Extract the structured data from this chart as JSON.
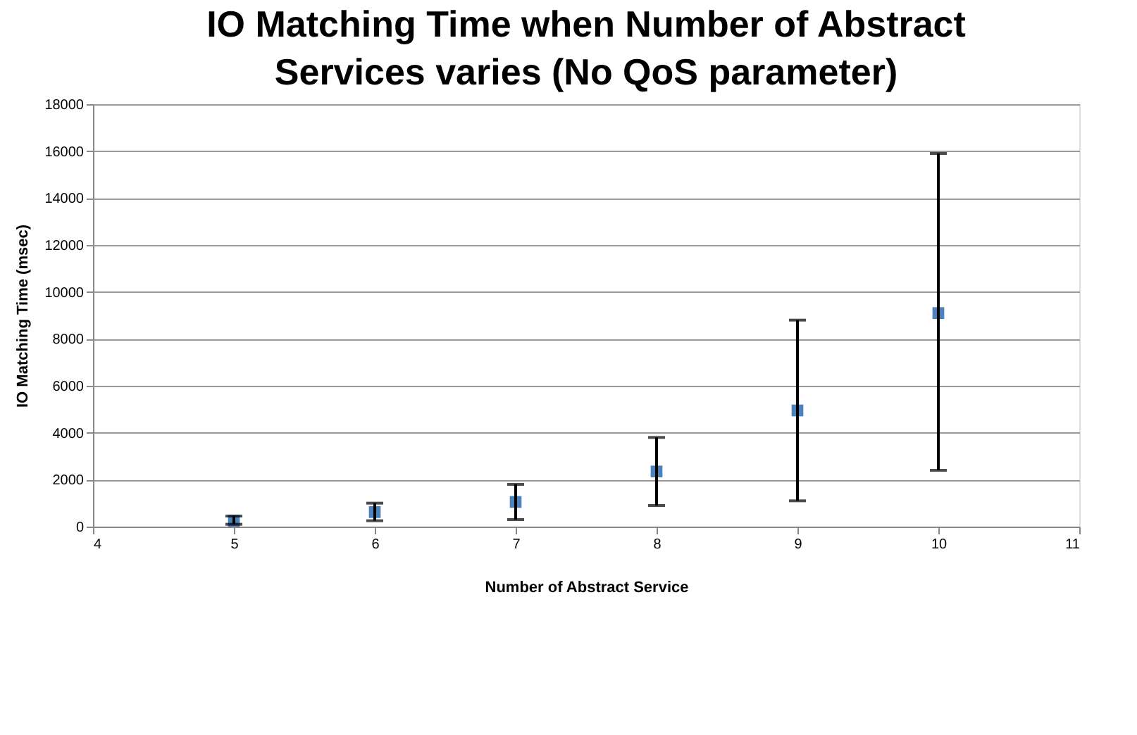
{
  "chart_data": {
    "type": "scatter",
    "title": "IO Matching Time when Number of Abstract Services varies (No QoS parameter)",
    "xlabel": "Number of Abstract Service",
    "ylabel": "IO Matching Time (msec)",
    "x": [
      5,
      6,
      7,
      8,
      9,
      10
    ],
    "values": [
      250,
      620,
      1050,
      2350,
      4950,
      9100
    ],
    "errors": [
      [
        100,
        450
      ],
      [
        250,
        1000
      ],
      [
        300,
        1800
      ],
      [
        900,
        3800
      ],
      [
        1100,
        8800
      ],
      [
        2400,
        15900
      ]
    ],
    "color": "#4f81bd",
    "xlim": [
      4,
      11
    ],
    "xticks": [
      4,
      5,
      6,
      7,
      8,
      9,
      10,
      11
    ],
    "ylim": [
      0,
      18000
    ],
    "yticks": [
      0,
      2000,
      4000,
      6000,
      8000,
      10000,
      12000,
      14000,
      16000,
      18000
    ],
    "grid": "y",
    "marker": "square"
  }
}
